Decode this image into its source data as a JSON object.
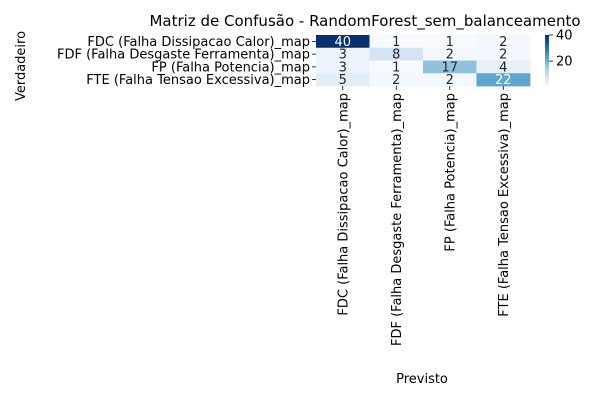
{
  "chart_data": {
    "type": "heatmap",
    "title": "Matriz de Confusão - RandomForest_sem_balanceamento",
    "xlabel": "Previsto",
    "ylabel": "Verdadeiro",
    "rows": [
      "FDC (Falha Dissipacao Calor)_map",
      "FDF (Falha Desgaste Ferramenta)_map",
      "FP (Falha Potencia)_map",
      "FTE (Falha Tensao Excessiva)_map"
    ],
    "columns": [
      "FDC (Falha Dissipacao Calor)_map",
      "FDF (Falha Desgaste Ferramenta)_map",
      "FP (Falha Potencia)_map",
      "FTE (Falha Tensao Excessiva)_map"
    ],
    "values": [
      [
        40,
        1,
        1,
        2
      ],
      [
        3,
        8,
        2,
        2
      ],
      [
        3,
        1,
        17,
        4
      ],
      [
        5,
        2,
        2,
        22
      ]
    ],
    "colormap": "Blues",
    "colorbar": {
      "range": [
        1,
        40
      ],
      "ticks": [
        20,
        40
      ]
    }
  }
}
